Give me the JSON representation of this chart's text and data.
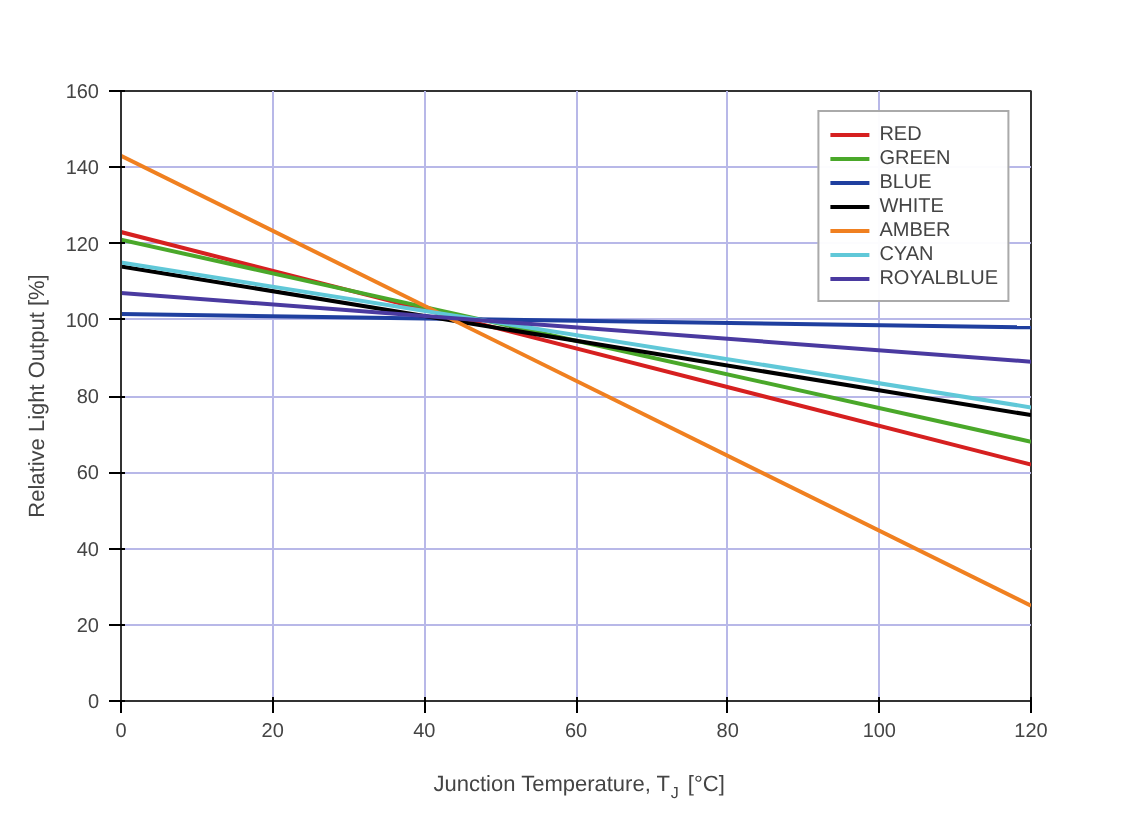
{
  "chart_data": {
    "type": "line",
    "xlabel": "Junction Temperature, T$_{J}$ [°C]",
    "ylabel": "Relative Light Output [%]",
    "x": [
      0,
      120
    ],
    "series": [
      {
        "name": "RED",
        "color": "#d62020",
        "values": [
          123,
          62
        ]
      },
      {
        "name": "GREEN",
        "color": "#4aa82a",
        "values": [
          121,
          68
        ]
      },
      {
        "name": "BLUE",
        "color": "#1f3f9f",
        "values": [
          101.5,
          98
        ]
      },
      {
        "name": "WHITE",
        "color": "#000000",
        "values": [
          114,
          75
        ]
      },
      {
        "name": "AMBER",
        "color": "#f08020",
        "values": [
          143,
          25
        ]
      },
      {
        "name": "CYAN",
        "color": "#60c8d8",
        "values": [
          115,
          77
        ]
      },
      {
        "name": "ROYALBLUE",
        "color": "#4a3aa0",
        "values": [
          107,
          89
        ]
      }
    ],
    "xlim": [
      0,
      120
    ],
    "ylim": [
      0,
      160
    ],
    "xticks": [
      0,
      20,
      40,
      60,
      80,
      100,
      120
    ],
    "yticks": [
      0,
      20,
      40,
      60,
      80,
      100,
      120,
      140,
      160
    ],
    "grid": true,
    "legend": "top right",
    "marker": "none",
    "line_style": "solid"
  }
}
